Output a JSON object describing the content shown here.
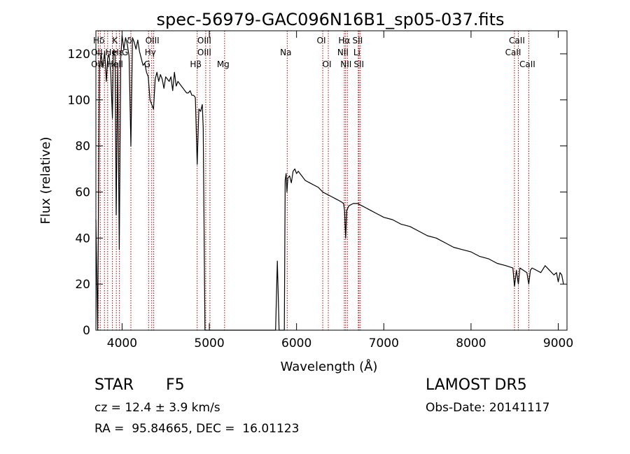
{
  "chart_data": {
    "type": "line",
    "title": "spec-56979-GAC096N16B1_sp05-037.fits",
    "xlabel": "Wavelength (Å)",
    "ylabel": "Flux (relative)",
    "xlim": [
      3700,
      9100
    ],
    "ylim": [
      0,
      130
    ],
    "xticks": [
      4000,
      5000,
      6000,
      7000,
      8000,
      9000
    ],
    "yticks": [
      0,
      20,
      40,
      60,
      80,
      100,
      120
    ],
    "grid": false,
    "line_color": "#000000",
    "marker_color": "#aa0000",
    "series": [
      {
        "x": [
          3700,
          3720,
          3740,
          3760,
          3780,
          3800,
          3820,
          3835,
          3850,
          3870,
          3889,
          3900,
          3920,
          3933,
          3950,
          3968,
          3985,
          4000,
          4020,
          4040,
          4060,
          4080,
          4101,
          4120,
          4140,
          4160,
          4180,
          4200,
          4220,
          4240,
          4260,
          4280,
          4300,
          4320,
          4340,
          4360,
          4380,
          4400,
          4420,
          4440,
          4460,
          4480,
          4500,
          4520,
          4540,
          4560,
          4580,
          4600,
          4620,
          4640,
          4660,
          4680,
          4700,
          4720,
          4740,
          4760,
          4780,
          4800,
          4820,
          4840,
          4861,
          4880,
          4900,
          4920,
          4930,
          4950,
          4970,
          5000,
          5100,
          5200,
          5300,
          5400,
          5500,
          5600,
          5700,
          5760,
          5780,
          5790,
          5800,
          5820,
          5840,
          5860,
          5870,
          5880,
          5890,
          5900,
          5920,
          5940,
          5960,
          5980,
          6000,
          6020,
          6040,
          6060,
          6080,
          6100,
          6150,
          6200,
          6250,
          6300,
          6350,
          6400,
          6450,
          6500,
          6540,
          6550,
          6563,
          6575,
          6600,
          6650,
          6700,
          6750,
          6800,
          6850,
          6900,
          6950,
          7000,
          7100,
          7200,
          7300,
          7400,
          7500,
          7600,
          7700,
          7800,
          7900,
          8000,
          8100,
          8200,
          8300,
          8400,
          8480,
          8498,
          8520,
          8542,
          8560,
          8600,
          8640,
          8662,
          8680,
          8700,
          8750,
          8800,
          8850,
          8900,
          8950,
          8980,
          9000,
          9020,
          9040,
          9060
        ],
        "y": [
          48,
          0,
          113,
          120,
          114,
          121,
          108,
          118,
          120,
          112,
          92,
          121,
          119,
          50,
          116,
          35,
          118,
          128,
          122,
          127,
          124,
          119,
          80,
          127,
          125,
          122,
          126,
          121,
          118,
          115,
          116,
          112,
          110,
          100,
          98,
          96,
          109,
          112,
          108,
          111,
          109,
          105,
          110,
          109,
          108,
          110,
          104,
          112,
          106,
          108,
          107,
          106,
          105,
          104,
          103,
          103,
          104,
          102,
          102,
          101,
          72,
          96,
          95,
          98,
          88,
          0,
          0,
          0,
          0,
          0,
          0,
          0,
          0,
          0,
          0,
          0,
          30,
          15,
          0,
          0,
          0,
          0,
          65,
          68,
          60,
          66,
          67,
          64,
          69,
          70,
          68,
          69,
          68,
          67,
          66,
          65,
          64,
          63,
          62,
          60,
          59,
          58,
          57,
          56,
          55,
          52,
          40,
          52,
          54,
          55,
          55,
          54,
          53,
          52,
          51,
          50,
          49,
          48,
          46,
          45,
          43,
          41,
          40,
          38,
          36,
          35,
          34,
          32,
          31,
          29,
          28,
          27,
          19,
          26,
          20,
          27,
          26,
          25,
          20,
          26,
          27,
          26,
          25,
          28,
          26,
          24,
          25,
          21,
          25,
          24,
          20
        ]
      }
    ],
    "line_markers": [
      {
        "label": "Hδ",
        "x": 3750,
        "row": 1
      },
      {
        "label": "OII",
        "x": 3727,
        "row": 2
      },
      {
        "label": "OII",
        "x": 3727,
        "row": 3
      },
      {
        "label": "He",
        "x": 3889,
        "row": 2
      },
      {
        "label": "Hell",
        "x": 3935,
        "row": 3
      },
      {
        "label": "K",
        "x": 3934,
        "row": 1
      },
      {
        "label": "Hε",
        "x": 3970,
        "row": 2
      },
      {
        "label": "δ",
        "x": 4101,
        "row": 1
      },
      {
        "label": "G",
        "x": 4050,
        "row": 2
      },
      {
        "label": "OIII",
        "x": 4363,
        "row": 1
      },
      {
        "label": "Hγ",
        "x": 4340,
        "row": 2
      },
      {
        "label": "G",
        "x": 4304,
        "row": 3
      },
      {
        "label": "OIII",
        "x": 4959,
        "row": 1
      },
      {
        "label": "OIII",
        "x": 4959,
        "row": 2
      },
      {
        "label": "Hβ",
        "x": 4861,
        "row": 3
      },
      {
        "label": "Mg",
        "x": 5175,
        "row": 3
      },
      {
        "label": "Na",
        "x": 5893,
        "row": 2
      },
      {
        "label": "OI",
        "x": 6300,
        "row": 1
      },
      {
        "label": "OI",
        "x": 6364,
        "row": 3
      },
      {
        "label": "Hα",
        "x": 6563,
        "row": 1
      },
      {
        "label": "NII",
        "x": 6548,
        "row": 2
      },
      {
        "label": "NII",
        "x": 6583,
        "row": 3
      },
      {
        "label": "SII",
        "x": 6716,
        "row": 1
      },
      {
        "label": "Li",
        "x": 6708,
        "row": 2
      },
      {
        "label": "SII",
        "x": 6731,
        "row": 3
      },
      {
        "label": "CaII",
        "x": 8542,
        "row": 1
      },
      {
        "label": "CaII",
        "x": 8498,
        "row": 2
      },
      {
        "label": "CaII",
        "x": 8662,
        "row": 3
      }
    ],
    "marker_lines_x": [
      3727,
      3750,
      3798,
      3835,
      3889,
      3934,
      3970,
      4101,
      4304,
      4340,
      4363,
      4861,
      4959,
      5007,
      5175,
      5893,
      6300,
      6364,
      6548,
      6563,
      6583,
      6708,
      6716,
      6731,
      8498,
      8542,
      8662
    ]
  },
  "info": {
    "obj_class": "STAR",
    "subclass": "F5",
    "survey": "LAMOST DR5",
    "cz": "cz = 12.4 ± 3.9 km/s",
    "obs_date": "Obs-Date: 20141117",
    "coords": "RA =  95.84665, DEC =  16.01123"
  }
}
